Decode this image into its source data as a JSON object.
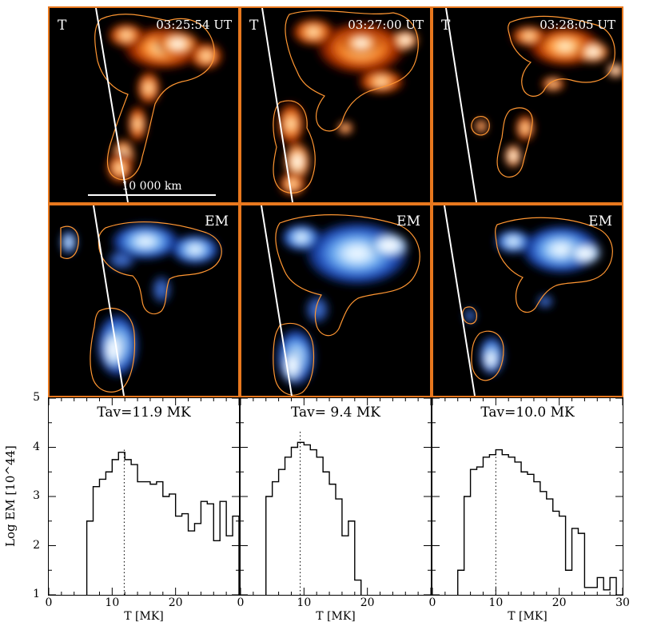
{
  "panels": {
    "t": [
      {
        "label": "T",
        "timestamp": "03:25:54 UT",
        "scale_text": "10 000 km"
      },
      {
        "label": "T",
        "timestamp": "03:27:00 UT"
      },
      {
        "label": "T",
        "timestamp": "03:28:05 UT"
      }
    ],
    "em": [
      {
        "label": "EM"
      },
      {
        "label": "EM"
      },
      {
        "label": "EM"
      }
    ]
  },
  "colors": {
    "panel_border": "#e8781e",
    "t_hot": "#ff8c28",
    "em_blue": "#5599e8",
    "map_background": "#000000",
    "background": "#ffffff",
    "limb_line": "#ffffff"
  },
  "chart_data": [
    {
      "type": "histogram",
      "title": "Tav=11.9 MK",
      "tav": 11.9,
      "tav_line_top": 4.0,
      "xlabel": "T [MK]",
      "ylabel": "Log EM [10^44]",
      "xlim": [
        0,
        30
      ],
      "ylim": [
        1,
        5
      ],
      "x_tick_labels": [
        {
          "v": 0,
          "label": "0"
        },
        {
          "v": 10,
          "label": "10"
        },
        {
          "v": 20,
          "label": "20"
        }
      ],
      "y_ticks": [
        1,
        2,
        3,
        4,
        5
      ],
      "bin_edges": [
        6,
        7,
        8,
        9,
        10,
        11,
        12,
        13,
        14,
        15,
        16,
        17,
        18,
        19,
        20,
        21,
        22,
        23,
        24,
        25,
        26,
        27,
        28,
        29,
        30
      ],
      "values": [
        2.5,
        3.2,
        3.35,
        3.5,
        3.75,
        3.9,
        3.75,
        3.65,
        3.3,
        3.3,
        3.25,
        3.3,
        3.0,
        3.05,
        2.6,
        2.65,
        2.3,
        2.45,
        2.9,
        2.85,
        2.1,
        2.9,
        2.2,
        2.6
      ]
    },
    {
      "type": "histogram",
      "title": "Tav= 9.4 MK",
      "tav": 9.4,
      "tav_line_top": 4.35,
      "xlabel": "T [MK]",
      "ylabel": "Log EM [10^44]",
      "xlim": [
        0,
        30
      ],
      "ylim": [
        1,
        5
      ],
      "x_tick_labels": [
        {
          "v": 0,
          "label": "0"
        },
        {
          "v": 10,
          "label": "10"
        },
        {
          "v": 20,
          "label": "20"
        }
      ],
      "y_ticks": [
        1,
        2,
        3,
        4,
        5
      ],
      "bin_edges": [
        4,
        5,
        6,
        7,
        8,
        9,
        10,
        11,
        12,
        13,
        14,
        15,
        16,
        17,
        18,
        19
      ],
      "values": [
        3.0,
        3.3,
        3.55,
        3.8,
        4.0,
        4.1,
        4.05,
        3.95,
        3.8,
        3.5,
        3.25,
        2.95,
        2.2,
        2.5,
        1.3
      ]
    },
    {
      "type": "histogram",
      "title": "Tav=10.0 MK",
      "tav": 10.0,
      "tav_line_top": 4.0,
      "xlabel": "T [MK]",
      "ylabel": "Log EM [10^44]",
      "xlim": [
        0,
        30
      ],
      "ylim": [
        1,
        5
      ],
      "x_tick_labels": [
        {
          "v": 0,
          "label": "0"
        },
        {
          "v": 10,
          "label": "10"
        },
        {
          "v": 20,
          "label": "20"
        },
        {
          "v": 30,
          "label": "30"
        }
      ],
      "y_ticks": [
        1,
        2,
        3,
        4,
        5
      ],
      "bin_edges": [
        4,
        5,
        6,
        7,
        8,
        9,
        10,
        11,
        12,
        13,
        14,
        15,
        16,
        17,
        18,
        19,
        20,
        21,
        22,
        23,
        24,
        25,
        26,
        27,
        28,
        29
      ],
      "values": [
        1.5,
        3.0,
        3.55,
        3.6,
        3.8,
        3.85,
        3.95,
        3.85,
        3.8,
        3.7,
        3.5,
        3.45,
        3.3,
        3.1,
        2.95,
        2.7,
        2.6,
        1.5,
        2.35,
        2.25,
        1.15,
        1.15,
        1.35,
        1.1,
        1.35
      ]
    }
  ]
}
